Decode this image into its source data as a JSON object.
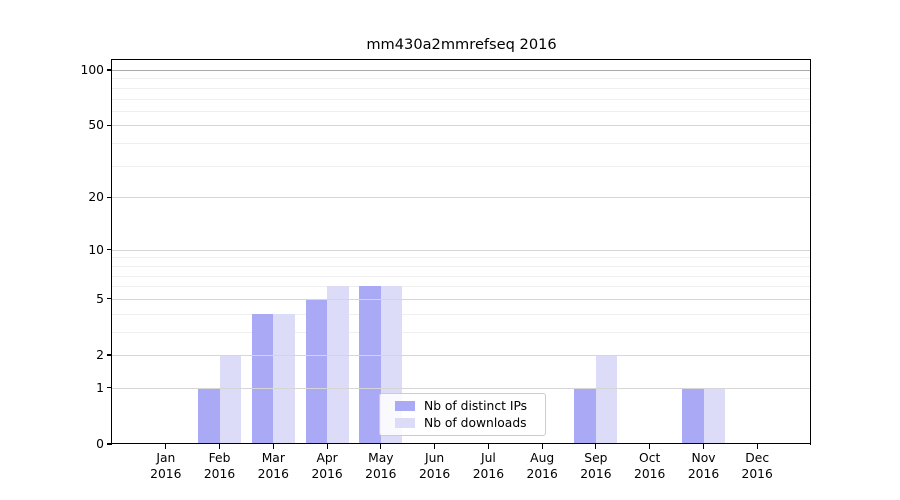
{
  "title": "mm430a2mmrefseq 2016",
  "chart_data": {
    "type": "bar",
    "title": "mm430a2mmrefseq 2016",
    "categories": [
      "Jan",
      "Feb",
      "Mar",
      "Apr",
      "May",
      "Jun",
      "Jul",
      "Aug",
      "Sep",
      "Oct",
      "Nov",
      "Dec"
    ],
    "x_year": "2016",
    "series": [
      {
        "name": "Nb of distinct IPs",
        "color": "#a9a9f6",
        "values": [
          0,
          1,
          4,
          5,
          6,
          0,
          0,
          0,
          1,
          0,
          1,
          0
        ]
      },
      {
        "name": "Nb of downloads",
        "color": "#dcdcf8",
        "values": [
          0,
          2,
          4,
          6,
          6,
          0,
          0,
          0,
          2,
          0,
          1,
          0
        ]
      }
    ],
    "y_scale": "log1p",
    "y_ticks": [
      0,
      1,
      2,
      5,
      10,
      20,
      50,
      100
    ],
    "y_minor_ticks": [
      3,
      4,
      6,
      7,
      8,
      9,
      30,
      40,
      60,
      70,
      80,
      90
    ],
    "ylim": [
      0,
      110
    ],
    "xlim": [
      0,
      13
    ],
    "grid": "horizontal",
    "legend_position": "lower center"
  },
  "colors": {
    "bar_distinct_ips": "#a9a9f6",
    "bar_downloads": "#dcdcf8",
    "grid_major": "#d6d6d6",
    "grid_minor": "#efefef",
    "grid_top_line": "#a9a9a9",
    "axis": "#000000",
    "legend_border": "#cccccc"
  }
}
